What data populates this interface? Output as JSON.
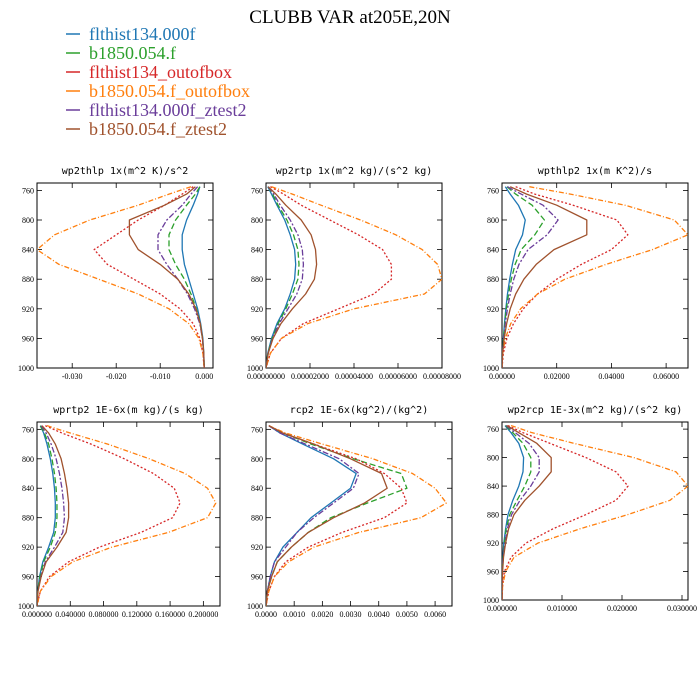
{
  "title": "CLUBB VAR at205E,20N",
  "legend": [
    {
      "name": "flthist134.000f",
      "color": "#1f77b4"
    },
    {
      "name": "b1850.054.f",
      "color": "#2ca02c"
    },
    {
      "name": "flthist134_outofbox",
      "color": "#d62728"
    },
    {
      "name": "b1850.054.f_outofbox",
      "color": "#ff7f0e"
    },
    {
      "name": "flthist134.000f_ztest2",
      "color": "#6a3d9a"
    },
    {
      "name": "b1850.054.f_ztest2",
      "color": "#a0522d"
    }
  ],
  "chart_data": [
    {
      "type": "line",
      "title": "wp2thlp   1x(m^2 K)/s^2",
      "xlim": [
        -0.038,
        0.002
      ],
      "ylim": [
        750,
        1000
      ],
      "y_inverted": true,
      "xticks": [
        "-0.030",
        "-0.020",
        "-0.010",
        "0.000"
      ],
      "xtick_values": [
        -0.03,
        -0.02,
        -0.01,
        0.0
      ],
      "yticks": [
        "760",
        "800",
        "840",
        "880",
        "920",
        "960",
        "1000"
      ],
      "ytick_values": [
        760,
        800,
        840,
        880,
        920,
        960,
        1000
      ],
      "y": [
        755,
        765,
        780,
        800,
        820,
        840,
        860,
        880,
        900,
        920,
        940,
        960,
        980,
        1000
      ],
      "series": [
        {
          "values": [
            -0.001,
            -0.0015,
            -0.0025,
            -0.004,
            -0.005,
            -0.005,
            -0.0045,
            -0.0035,
            -0.0025,
            -0.0015,
            -0.0008,
            -0.0003,
            -0.0001,
            0.0
          ]
        },
        {
          "values": [
            -0.001,
            -0.002,
            -0.004,
            -0.0065,
            -0.008,
            -0.008,
            -0.0065,
            -0.0045,
            -0.003,
            -0.0018,
            -0.0009,
            -0.0004,
            -0.0001,
            0.0
          ]
        },
        {
          "values": [
            -0.0025,
            -0.005,
            -0.009,
            -0.015,
            -0.02,
            -0.025,
            -0.022,
            -0.016,
            -0.01,
            -0.0055,
            -0.0025,
            -0.001,
            -0.0003,
            0.0
          ]
        },
        {
          "values": [
            -0.003,
            -0.008,
            -0.015,
            -0.026,
            -0.034,
            -0.038,
            -0.033,
            -0.024,
            -0.015,
            -0.008,
            -0.0035,
            -0.0012,
            -0.0003,
            0.0
          ]
        },
        {
          "values": [
            -0.0015,
            -0.003,
            -0.005,
            -0.0085,
            -0.0105,
            -0.0105,
            -0.0085,
            -0.006,
            -0.0038,
            -0.0022,
            -0.001,
            -0.0004,
            -0.0001,
            0.0
          ]
        },
        {
          "values": [
            -0.002,
            -0.004,
            -0.009,
            -0.017,
            -0.017,
            -0.015,
            -0.01,
            -0.006,
            -0.0035,
            -0.0019,
            -0.0009,
            -0.0004,
            -0.0001,
            0.0
          ]
        }
      ]
    },
    {
      "type": "line",
      "title": "wp2rtp   1x(m^2 kg)/(s^2 kg)",
      "xlim": [
        0,
        8e-05
      ],
      "ylim": [
        750,
        1000
      ],
      "y_inverted": true,
      "xticks": [
        "0.00000000",
        "0.00002000",
        "0.00004000",
        "0.00006000",
        "0.00008000"
      ],
      "xtick_values": [
        0,
        2e-05,
        4e-05,
        6e-05,
        8e-05
      ],
      "yticks": [
        "760",
        "800",
        "840",
        "880",
        "920",
        "960",
        "1000"
      ],
      "ytick_values": [
        760,
        800,
        840,
        880,
        920,
        960,
        1000
      ],
      "y": [
        755,
        765,
        780,
        800,
        820,
        840,
        860,
        880,
        900,
        920,
        940,
        960,
        980,
        1000
      ],
      "series": [
        {
          "values": [
            8e-07,
            2.5e-06,
            5e-06,
            8.5e-06,
            1.1e-05,
            1.3e-05,
            1.35e-05,
            1.3e-05,
            1.1e-05,
            8.5e-06,
            5e-06,
            2.5e-06,
            8e-07,
            0.0
          ]
        },
        {
          "values": [
            1e-06,
            3e-06,
            5.5e-06,
            9.5e-06,
            1.25e-05,
            1.45e-05,
            1.5e-05,
            1.45e-05,
            1.2e-05,
            9e-06,
            5.5e-06,
            2.8e-06,
            9e-07,
            0.0
          ]
        },
        {
          "values": [
            2e-06,
            8e-06,
            1.6e-05,
            2.9e-05,
            4.2e-05,
            5.3e-05,
            5.7e-05,
            5.7e-05,
            4.9e-05,
            3.3e-05,
            1.7e-05,
            7e-06,
            2e-06,
            0.0
          ]
        },
        {
          "values": [
            2.5e-06,
            1.2e-05,
            2.5e-05,
            4.3e-05,
            5.9e-05,
            7.1e-05,
            7.8e-05,
            8e-05,
            7.2e-05,
            4e-05,
            1.9e-05,
            7e-06,
            2e-06,
            0.0
          ]
        },
        {
          "values": [
            1e-06,
            3.5e-06,
            6.5e-06,
            1.1e-05,
            1.45e-05,
            1.65e-05,
            1.7e-05,
            1.65e-05,
            1.4e-05,
            1e-05,
            6e-06,
            3e-06,
            1e-06,
            0.0
          ]
        },
        {
          "values": [
            1e-06,
            4.5e-06,
            9e-06,
            1.6e-05,
            2.05e-05,
            2.25e-05,
            2.3e-05,
            2.2e-05,
            1.8e-05,
            1.2e-05,
            6.8e-06,
            3.2e-06,
            1e-06,
            0.0
          ]
        }
      ]
    },
    {
      "type": "line",
      "title": "wpthlp2   1x(m K^2)/s",
      "xlim": [
        0,
        0.068
      ],
      "ylim": [
        750,
        1000
      ],
      "y_inverted": true,
      "xticks": [
        "0.00000",
        "0.02000",
        "0.04000",
        "0.06000"
      ],
      "xtick_values": [
        0,
        0.02,
        0.04,
        0.06
      ],
      "yticks": [
        "760",
        "800",
        "840",
        "880",
        "920",
        "960",
        "1000"
      ],
      "ytick_values": [
        760,
        800,
        840,
        880,
        920,
        960,
        1000
      ],
      "y": [
        755,
        765,
        780,
        800,
        820,
        840,
        860,
        880,
        900,
        920,
        940,
        960,
        980,
        1000
      ],
      "series": [
        {
          "values": [
            0.0012,
            0.003,
            0.006,
            0.0085,
            0.0075,
            0.005,
            0.0038,
            0.0028,
            0.002,
            0.0014,
            0.0009,
            0.0005,
            0.0002,
            0.0
          ]
        },
        {
          "values": [
            0.0018,
            0.005,
            0.011,
            0.0155,
            0.012,
            0.007,
            0.0048,
            0.0034,
            0.0024,
            0.0016,
            0.001,
            0.0006,
            0.0002,
            0.0
          ]
        },
        {
          "values": [
            0.005,
            0.012,
            0.026,
            0.042,
            0.046,
            0.04,
            0.029,
            0.02,
            0.013,
            0.0078,
            0.0042,
            0.0018,
            0.0005,
            0.0
          ]
        },
        {
          "values": [
            0.01,
            0.025,
            0.045,
            0.063,
            0.068,
            0.055,
            0.038,
            0.023,
            0.013,
            0.0068,
            0.0032,
            0.0012,
            0.0003,
            0.0
          ]
        },
        {
          "values": [
            0.002,
            0.007,
            0.015,
            0.0205,
            0.0165,
            0.0095,
            0.0062,
            0.0043,
            0.003,
            0.002,
            0.0012,
            0.0007,
            0.0002,
            0.0
          ]
        },
        {
          "values": [
            0.003,
            0.009,
            0.02,
            0.031,
            0.031,
            0.019,
            0.0125,
            0.008,
            0.005,
            0.003,
            0.0017,
            0.0008,
            0.0002,
            0.0
          ]
        }
      ]
    },
    {
      "type": "line",
      "title": "wprtp2   1E-6x(m kg)/(s kg)",
      "xlim": [
        0,
        0.22
      ],
      "ylim": [
        750,
        1000
      ],
      "y_inverted": true,
      "xticks": [
        "0.000000",
        "0.040000",
        "0.080000",
        "0.120000",
        "0.160000",
        "0.200000"
      ],
      "xtick_values": [
        0,
        0.04,
        0.08,
        0.12,
        0.16,
        0.2
      ],
      "yticks": [
        "760",
        "800",
        "840",
        "880",
        "920",
        "960",
        "1000"
      ],
      "ytick_values": [
        760,
        800,
        840,
        880,
        920,
        960,
        1000
      ],
      "y": [
        755,
        765,
        780,
        800,
        820,
        840,
        860,
        880,
        900,
        920,
        940,
        960,
        980,
        1000
      ],
      "series": [
        {
          "values": [
            0.004,
            0.008,
            0.012,
            0.016,
            0.019,
            0.021,
            0.022,
            0.022,
            0.02,
            0.014,
            0.007,
            0.003,
            0.001,
            0.0
          ]
        },
        {
          "values": [
            0.004,
            0.009,
            0.014,
            0.018,
            0.021,
            0.023,
            0.024,
            0.024,
            0.022,
            0.016,
            0.008,
            0.0035,
            0.001,
            0.0
          ]
        },
        {
          "values": [
            0.01,
            0.03,
            0.065,
            0.105,
            0.14,
            0.165,
            0.172,
            0.163,
            0.125,
            0.075,
            0.038,
            0.015,
            0.004,
            0.0
          ]
        },
        {
          "values": [
            0.012,
            0.04,
            0.085,
            0.135,
            0.178,
            0.205,
            0.215,
            0.205,
            0.158,
            0.09,
            0.043,
            0.017,
            0.004,
            0.0
          ]
        },
        {
          "values": [
            0.005,
            0.011,
            0.017,
            0.023,
            0.027,
            0.03,
            0.032,
            0.033,
            0.031,
            0.021,
            0.01,
            0.0045,
            0.0012,
            0.0
          ]
        },
        {
          "values": [
            0.006,
            0.014,
            0.022,
            0.029,
            0.033,
            0.036,
            0.038,
            0.038,
            0.035,
            0.024,
            0.011,
            0.005,
            0.0012,
            0.0
          ]
        }
      ]
    },
    {
      "type": "line",
      "title": "rcp2   1E-6x(kg^2)/(kg^2)",
      "xlim": [
        0,
        0.0066
      ],
      "ylim": [
        750,
        1000
      ],
      "y_inverted": true,
      "xticks": [
        "0.0000",
        "0.0010",
        "0.0020",
        "0.0030",
        "0.0040",
        "0.0050",
        "0.0060"
      ],
      "xtick_values": [
        0,
        0.001,
        0.002,
        0.003,
        0.004,
        0.005,
        0.006
      ],
      "yticks": [
        "760",
        "800",
        "840",
        "880",
        "920",
        "960",
        "1000"
      ],
      "ytick_values": [
        760,
        800,
        840,
        880,
        920,
        960,
        1000
      ],
      "y": [
        755,
        765,
        780,
        800,
        820,
        840,
        860,
        880,
        900,
        920,
        940,
        960,
        980,
        1000
      ],
      "series": [
        {
          "values": [
            0.0001,
            0.0005,
            0.0013,
            0.0024,
            0.0032,
            0.003,
            0.0023,
            0.0016,
            0.0011,
            0.0006,
            0.0003,
            0.00015,
            5e-05,
            0.0
          ]
        },
        {
          "values": [
            0.0001,
            0.0006,
            0.0016,
            0.0031,
            0.0048,
            0.005,
            0.0036,
            0.0023,
            0.0015,
            0.0009,
            0.0004,
            0.0002,
            5e-05,
            0.0
          ]
        },
        {
          "values": [
            0.0001,
            0.0006,
            0.0017,
            0.0032,
            0.0042,
            0.0048,
            0.005,
            0.0042,
            0.0027,
            0.0015,
            0.0007,
            0.0003,
            0.0001,
            0.0
          ]
        },
        {
          "values": [
            0.0001,
            0.0007,
            0.002,
            0.0038,
            0.0052,
            0.006,
            0.0064,
            0.0055,
            0.0033,
            0.0017,
            0.0008,
            0.0003,
            0.0001,
            0.0
          ]
        },
        {
          "values": [
            0.0001,
            0.0005,
            0.0014,
            0.0026,
            0.0033,
            0.0031,
            0.0024,
            0.0017,
            0.0011,
            0.0007,
            0.0003,
            0.00015,
            5e-05,
            0.0
          ]
        },
        {
          "values": [
            0.0001,
            0.0006,
            0.0017,
            0.003,
            0.0041,
            0.0043,
            0.0035,
            0.0024,
            0.0015,
            0.0009,
            0.0004,
            0.0002,
            5e-05,
            0.0
          ]
        }
      ]
    },
    {
      "type": "line",
      "title": "wp2rcp   1E-3x(m^2 kg)/(s^2 kg)",
      "xlim": [
        0,
        0.031
      ],
      "ylim": [
        750,
        1000
      ],
      "y_inverted": true,
      "xticks": [
        "0.000000",
        "0.010000",
        "0.020000",
        "0.030000"
      ],
      "xtick_values": [
        0,
        0.01,
        0.02,
        0.03
      ],
      "yticks": [
        "760",
        "800",
        "840",
        "880",
        "920",
        "960",
        "1000"
      ],
      "ytick_values": [
        760,
        800,
        840,
        880,
        920,
        960,
        1000
      ],
      "y": [
        755,
        765,
        780,
        800,
        820,
        840,
        860,
        880,
        900,
        920,
        940,
        960,
        980,
        1000
      ],
      "series": [
        {
          "values": [
            0.0005,
            0.0015,
            0.0028,
            0.0036,
            0.0035,
            0.0028,
            0.0018,
            0.001,
            0.0006,
            0.0003,
            0.00015,
            5e-05,
            0.0,
            0.0
          ]
        },
        {
          "values": [
            0.0006,
            0.0018,
            0.0035,
            0.0048,
            0.0048,
            0.0038,
            0.0025,
            0.0013,
            0.0007,
            0.0004,
            0.0002,
            6e-05,
            0.0,
            0.0
          ]
        },
        {
          "values": [
            0.001,
            0.0035,
            0.008,
            0.014,
            0.019,
            0.021,
            0.019,
            0.014,
            0.0085,
            0.004,
            0.0015,
            0.0004,
            0.0001,
            0.0
          ]
        },
        {
          "values": [
            0.0015,
            0.005,
            0.012,
            0.022,
            0.029,
            0.031,
            0.028,
            0.021,
            0.013,
            0.006,
            0.002,
            0.0006,
            0.0001,
            0.0
          ]
        },
        {
          "values": [
            0.0007,
            0.0022,
            0.0045,
            0.0062,
            0.0062,
            0.0048,
            0.003,
            0.0016,
            0.0009,
            0.0005,
            0.0002,
            8e-05,
            0.0,
            0.0
          ]
        },
        {
          "values": [
            0.0008,
            0.0028,
            0.0058,
            0.0082,
            0.0082,
            0.0062,
            0.0038,
            0.002,
            0.0011,
            0.0006,
            0.00025,
            0.0001,
            0.0,
            0.0
          ]
        }
      ]
    }
  ]
}
